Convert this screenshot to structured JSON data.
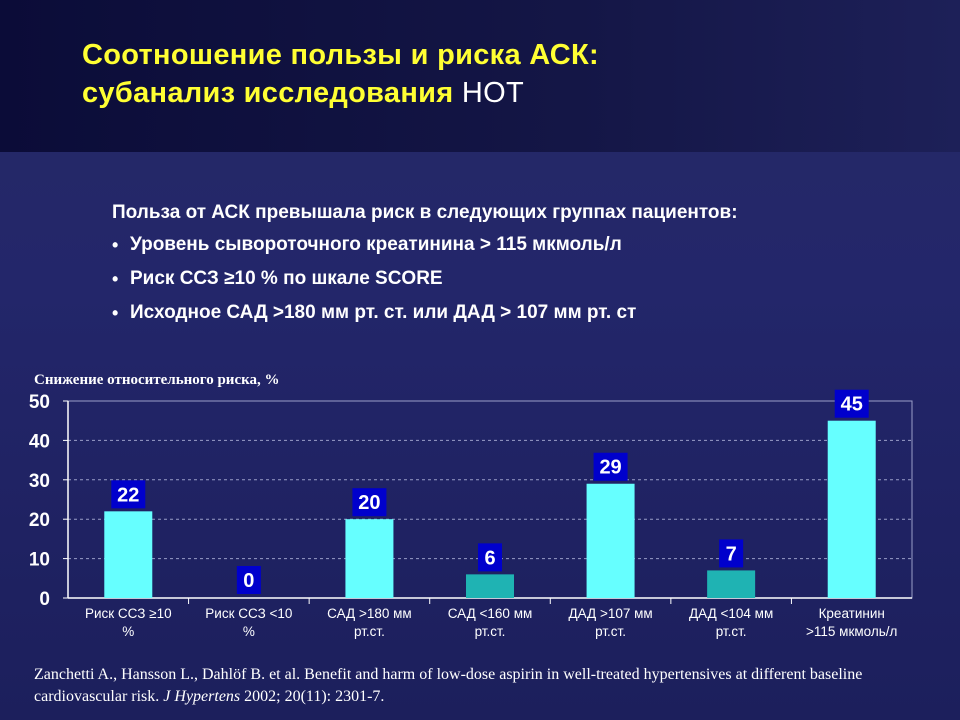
{
  "title": {
    "line1": "Соотношение пользы и риска АСК:",
    "line2_prefix": "субанализ исследования",
    "line2_suffix": "НОТ"
  },
  "intro": "Польза от АСК превышала риск в следующих группах пациентов:",
  "bullets": [
    "Уровень сывороточного креатинина > 115 мкмоль/л",
    "Риск ССЗ ≥10 % по шкале SCORE",
    "Исходное САД >180 мм рт. ст. или ДАД  > 107 мм рт. ст"
  ],
  "chart_data": {
    "type": "bar",
    "ylabel": "Снижение относительного риска, %",
    "ylim": [
      0,
      50
    ],
    "yticks": [
      0,
      10,
      20,
      30,
      40,
      50
    ],
    "grid": true,
    "categories": [
      [
        "Риск ССЗ ≥10",
        "%"
      ],
      [
        "Риск ССЗ <10",
        "%"
      ],
      [
        "САД >180 мм",
        "рт.ст."
      ],
      [
        "САД <160 мм",
        "рт.ст."
      ],
      [
        "ДАД >107 мм",
        "рт.ст."
      ],
      [
        "ДАД <104 мм",
        "рт.ст."
      ],
      [
        "Креатинин",
        ">115 мкмоль/л"
      ]
    ],
    "values": [
      22,
      0,
      20,
      6,
      29,
      7,
      45
    ],
    "data_labels": [
      "22",
      "0",
      "20",
      "6",
      "29",
      "7",
      "45"
    ],
    "bar_colors": [
      "#66ffff",
      "#66ffff",
      "#66ffff",
      "#1fb3b3",
      "#66ffff",
      "#1fb3b3",
      "#66ffff"
    ],
    "label_box_color": "#0000cc"
  },
  "citation": {
    "authors": "Zanchetti A., Hansson L., Dahlöf B. et al. Benefit and harm of low-dose aspirin in well-treated hypertensives at different baseline cardiovascular risk.",
    "journal": "J Hypertens",
    "details": "2002; 20(11): 2301-7."
  }
}
